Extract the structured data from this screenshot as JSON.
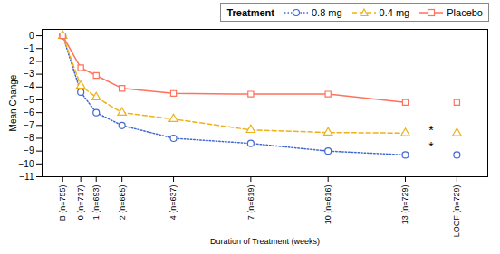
{
  "chart_data": {
    "type": "line",
    "xlabel": "Duration of Treatment (weeks)",
    "ylabel": "Mean Change",
    "legend_title": "Treatment",
    "legend": "upper right",
    "grid": false,
    "xlim": [
      -0.8,
      16.5
    ],
    "xticks": [
      {
        "value": 0,
        "label": "B\n(n=755)"
      },
      {
        "value": 0.7,
        "label": "0\n(n=717)"
      },
      {
        "value": 1.3,
        "label": "1\n(n=693)"
      },
      {
        "value": 2.3,
        "label": "2\n(n=665)"
      },
      {
        "value": 4.3,
        "label": "4\n(n=637)"
      },
      {
        "value": 7.3,
        "label": "7\n(n=619)"
      },
      {
        "value": 10.3,
        "label": "10\n(n=616)"
      },
      {
        "value": 13.3,
        "label": "13\n(n=729)"
      },
      {
        "value": 15.3,
        "label": "LOCF\n(n=729)"
      }
    ],
    "ylim": [
      -11,
      0.5
    ],
    "yticks": [
      0,
      -1,
      -2,
      -3,
      -4,
      -5,
      -6,
      -7,
      -8,
      -9,
      -10,
      -11
    ],
    "series": [
      {
        "name": "0.8 mg",
        "line_style": "dotted",
        "marker": "circle",
        "x": [
          0,
          0.7,
          1.3,
          2.3,
          4.3,
          7.3,
          10.3,
          13.3
        ],
        "values": [
          0,
          -4.4,
          -6.0,
          -7.0,
          -8.0,
          -8.4,
          -9.0,
          -9.3
        ],
        "locf": {
          "x": 15.3,
          "value": -9.3
        }
      },
      {
        "name": "0.4 mg",
        "line_style": "dashed",
        "marker": "triangle",
        "x": [
          0,
          0.7,
          1.3,
          2.3,
          4.3,
          7.3,
          10.3,
          13.3
        ],
        "values": [
          0,
          -3.9,
          -4.8,
          -6.0,
          -6.5,
          -7.35,
          -7.55,
          -7.6
        ],
        "locf": {
          "x": 15.3,
          "value": -7.6
        }
      },
      {
        "name": "Placebo",
        "line_style": "solid",
        "marker": "square",
        "x": [
          0,
          0.7,
          1.3,
          2.3,
          4.3,
          7.3,
          10.3,
          13.3
        ],
        "values": [
          0,
          -2.5,
          -3.1,
          -4.1,
          -4.5,
          -4.55,
          -4.55,
          -5.2
        ],
        "locf": {
          "x": 15.3,
          "value": -5.2
        }
      }
    ],
    "annotations": [
      {
        "text": "*",
        "x": 14.3,
        "y": -8.7
      },
      {
        "text": "*",
        "x": 14.3,
        "y": -7.4
      }
    ]
  }
}
